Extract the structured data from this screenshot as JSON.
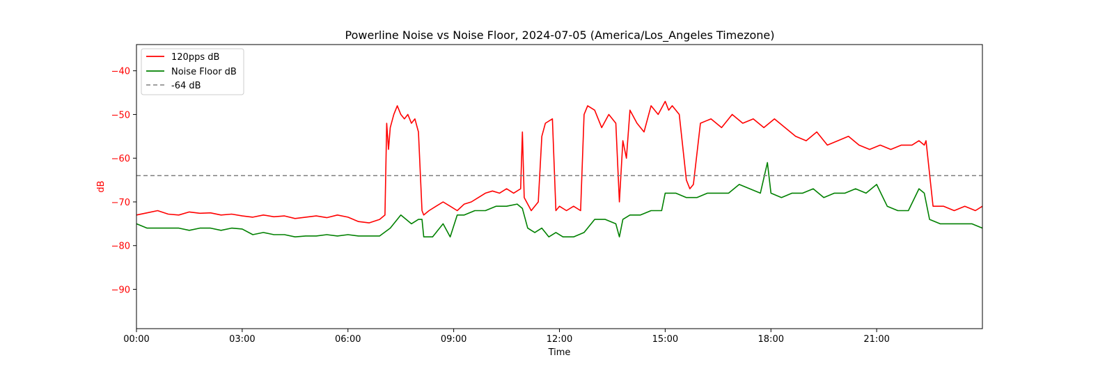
{
  "chart_data": {
    "type": "line",
    "title": "Powerline Noise vs Noise Floor, 2024-07-05 (America/Los_Angeles Timezone)",
    "xlabel": "Time",
    "ylabel": "dB",
    "x_unit": "hours",
    "xlim": [
      "00:00",
      "24:00"
    ],
    "ylim": [
      -99,
      -34
    ],
    "x_ticks": [
      "00:00",
      "03:00",
      "06:00",
      "09:00",
      "12:00",
      "15:00",
      "18:00",
      "21:00"
    ],
    "y_ticks": [
      "−40",
      "−50",
      "−60",
      "−70",
      "−80",
      "−90"
    ],
    "grid": false,
    "legend_position": "upper-left",
    "ylabel_color": "#ff0000",
    "y_tick_color": "#ff0000",
    "series": [
      {
        "name": "120pps dB",
        "color": "#ff0000",
        "x": [
          0,
          0.3,
          0.6,
          0.9,
          1.2,
          1.5,
          1.8,
          2.1,
          2.4,
          2.7,
          3.0,
          3.3,
          3.6,
          3.9,
          4.2,
          4.5,
          4.8,
          5.1,
          5.4,
          5.7,
          6.0,
          6.3,
          6.6,
          6.9,
          7.05,
          7.1,
          7.15,
          7.2,
          7.3,
          7.4,
          7.5,
          7.6,
          7.7,
          7.8,
          7.9,
          8.0,
          8.1,
          8.15,
          8.3,
          8.5,
          8.7,
          8.9,
          9.1,
          9.3,
          9.5,
          9.7,
          9.9,
          10.1,
          10.3,
          10.5,
          10.7,
          10.9,
          10.95,
          11.0,
          11.2,
          11.4,
          11.5,
          11.6,
          11.8,
          11.9,
          12.0,
          12.2,
          12.4,
          12.6,
          12.7,
          12.8,
          13.0,
          13.2,
          13.4,
          13.6,
          13.7,
          13.8,
          13.9,
          14.0,
          14.2,
          14.4,
          14.6,
          14.8,
          15.0,
          15.1,
          15.2,
          15.4,
          15.6,
          15.7,
          15.8,
          16.0,
          16.3,
          16.6,
          16.9,
          17.2,
          17.5,
          17.8,
          18.1,
          18.4,
          18.7,
          19.0,
          19.3,
          19.6,
          19.9,
          20.2,
          20.5,
          20.8,
          21.1,
          21.4,
          21.7,
          22.0,
          22.2,
          22.35,
          22.4,
          22.6,
          22.9,
          23.2,
          23.5,
          23.8,
          24.0
        ],
        "values": [
          -73,
          -72.5,
          -72,
          -72.8,
          -73,
          -72.3,
          -72.6,
          -72.5,
          -73,
          -72.8,
          -73.2,
          -73.5,
          -73,
          -73.4,
          -73.2,
          -73.8,
          -73.5,
          -73.2,
          -73.6,
          -73,
          -73.5,
          -74.5,
          -74.8,
          -74,
          -73,
          -52,
          -58,
          -53,
          -50,
          -48,
          -50,
          -51,
          -50,
          -52,
          -51,
          -54,
          -72,
          -73,
          -72,
          -71,
          -70,
          -71,
          -72,
          -70.5,
          -70,
          -69,
          -68,
          -67.5,
          -68,
          -67,
          -68,
          -67,
          -54,
          -69,
          -72,
          -70,
          -55,
          -52,
          -51,
          -72,
          -71,
          -72,
          -71,
          -72,
          -50,
          -48,
          -49,
          -53,
          -50,
          -52,
          -70,
          -56,
          -60,
          -49,
          -52,
          -54,
          -48,
          -50,
          -47,
          -49,
          -48,
          -50,
          -65,
          -67,
          -66,
          -52,
          -51,
          -53,
          -50,
          -52,
          -51,
          -53,
          -51,
          -53,
          -55,
          -56,
          -54,
          -57,
          -56,
          -55,
          -57,
          -58,
          -57,
          -58,
          -57,
          -57,
          -56,
          -57,
          -56,
          -71,
          -71,
          -72,
          -71,
          -72,
          -71
        ]
      },
      {
        "name": "Noise Floor dB",
        "color": "#008000",
        "x": [
          0,
          0.3,
          0.6,
          0.9,
          1.2,
          1.5,
          1.8,
          2.1,
          2.4,
          2.7,
          3.0,
          3.3,
          3.6,
          3.9,
          4.2,
          4.5,
          4.8,
          5.1,
          5.4,
          5.7,
          6.0,
          6.3,
          6.6,
          6.9,
          7.2,
          7.5,
          7.8,
          8.0,
          8.1,
          8.15,
          8.4,
          8.7,
          8.9,
          9.1,
          9.3,
          9.6,
          9.9,
          10.2,
          10.5,
          10.8,
          10.95,
          11.1,
          11.3,
          11.5,
          11.7,
          11.9,
          12.1,
          12.4,
          12.7,
          13.0,
          13.3,
          13.6,
          13.7,
          13.8,
          14.0,
          14.3,
          14.6,
          14.9,
          15.0,
          15.3,
          15.6,
          15.9,
          16.2,
          16.5,
          16.8,
          17.1,
          17.4,
          17.7,
          17.9,
          18.0,
          18.3,
          18.6,
          18.9,
          19.2,
          19.5,
          19.8,
          20.1,
          20.4,
          20.7,
          21.0,
          21.3,
          21.6,
          21.9,
          22.2,
          22.35,
          22.5,
          22.8,
          23.1,
          23.4,
          23.7,
          24.0
        ],
        "values": [
          -75,
          -76,
          -76,
          -76,
          -76,
          -76.5,
          -76,
          -76,
          -76.5,
          -76,
          -76.2,
          -77.5,
          -77,
          -77.5,
          -77.5,
          -78,
          -77.8,
          -77.8,
          -77.5,
          -77.8,
          -77.5,
          -77.8,
          -77.8,
          -77.8,
          -76,
          -73,
          -75,
          -74,
          -74,
          -78,
          -78,
          -75,
          -78,
          -73,
          -73,
          -72,
          -72,
          -71,
          -71,
          -70.5,
          -71.5,
          -76,
          -77,
          -76,
          -78,
          -77,
          -78,
          -78,
          -77,
          -74,
          -74,
          -75,
          -78,
          -74,
          -73,
          -73,
          -72,
          -72,
          -68,
          -68,
          -69,
          -69,
          -68,
          -68,
          -68,
          -66,
          -67,
          -68,
          -61,
          -68,
          -69,
          -68,
          -68,
          -67,
          -69,
          -68,
          -68,
          -67,
          -68,
          -66,
          -71,
          -72,
          -72,
          -67,
          -68,
          -74,
          -75,
          -75,
          -75,
          -75,
          -76
        ]
      },
      {
        "name": "-64 dB",
        "color": "#808080",
        "style": "dashed",
        "x": [
          0,
          24
        ],
        "values": [
          -64,
          -64
        ]
      }
    ]
  }
}
